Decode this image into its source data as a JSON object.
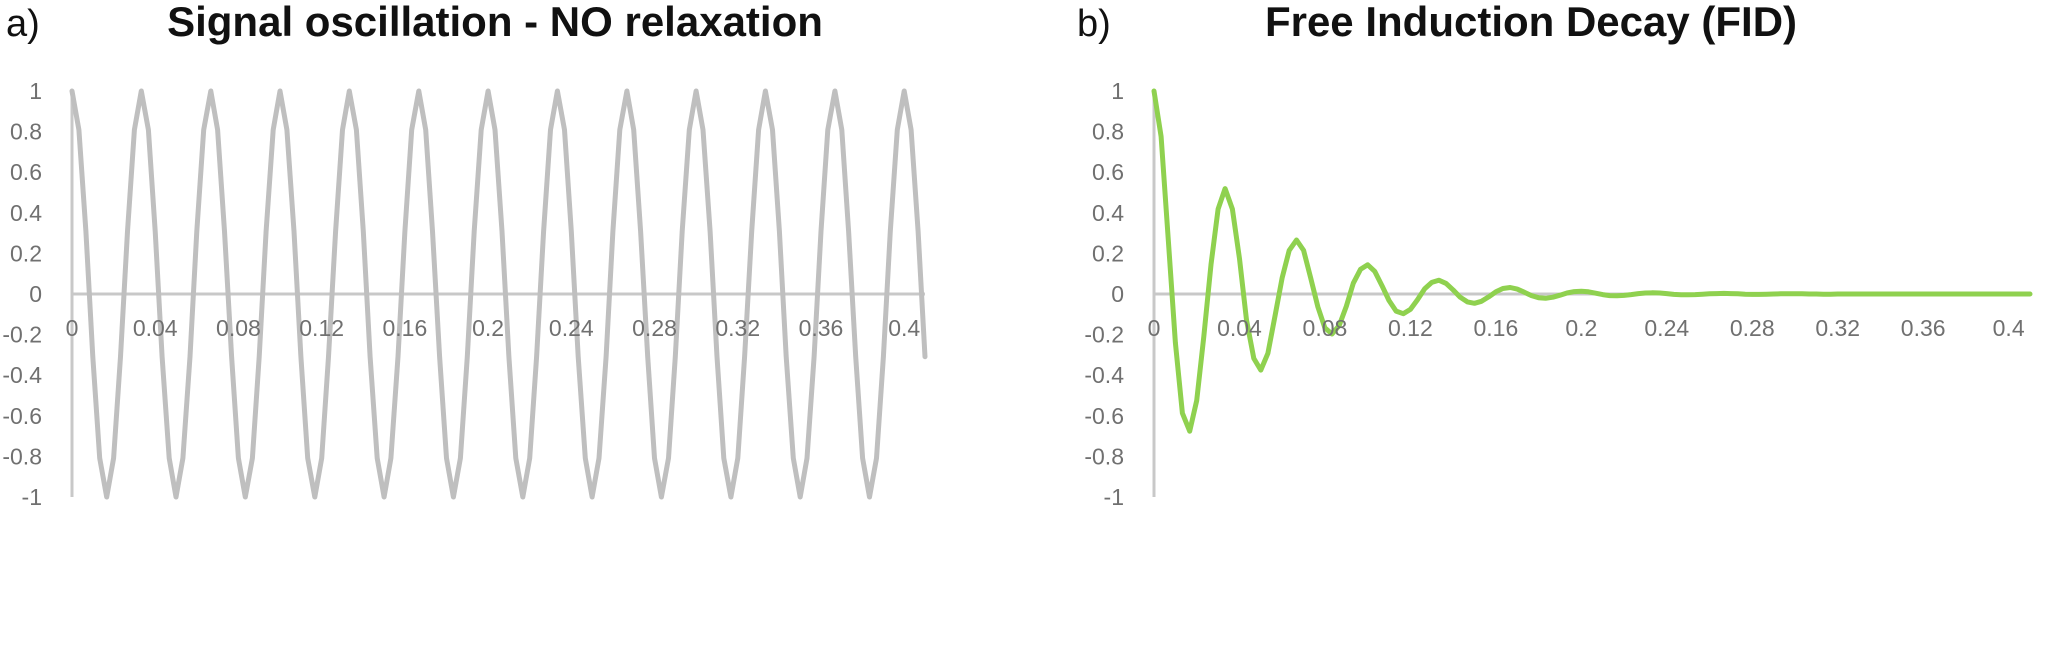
{
  "chart_data": [
    {
      "panel_letter": "a)",
      "title": "Signal oscillation - NO relaxation",
      "type": "line",
      "xlabel": "",
      "ylabel": "",
      "xlim": [
        0,
        0.41
      ],
      "ylim": [
        -1,
        1
      ],
      "x_ticks": [
        "0",
        "0.04",
        "0.08",
        "0.12",
        "0.16",
        "0.2",
        "0.24",
        "0.28",
        "0.32",
        "0.36",
        "0.4"
      ],
      "y_ticks": [
        "1",
        "0.8",
        "0.6",
        "0.4",
        "0.2",
        "0",
        "-0.2",
        "-0.4",
        "-0.6",
        "-0.8",
        "-1"
      ],
      "grid": false,
      "line_color": "#bfbfbf",
      "series": [
        {
          "x": [
            0,
            0.0033,
            0.0067,
            0.01,
            0.0133,
            0.0167,
            0.02,
            0.0233,
            0.0267,
            0.03,
            0.0333,
            0.0367,
            0.04,
            0.0433,
            0.0467,
            0.05,
            0.0533,
            0.0567,
            0.06,
            0.0633,
            0.0667,
            0.07,
            0.0733,
            0.0767,
            0.08,
            0.0833,
            0.0867,
            0.09,
            0.0933,
            0.0967,
            0.1,
            0.1033,
            0.1067,
            0.11,
            0.1133,
            0.1167,
            0.12,
            0.1233,
            0.1267,
            0.13,
            0.1333,
            0.1367,
            0.14,
            0.1433,
            0.1467,
            0.15,
            0.1533,
            0.1567,
            0.16,
            0.1633,
            0.1667,
            0.17,
            0.1733,
            0.1767,
            0.18,
            0.1833,
            0.1867,
            0.19,
            0.1933,
            0.1967,
            0.2,
            0.2033,
            0.2067,
            0.21,
            0.2133,
            0.2167,
            0.22,
            0.2233,
            0.2267,
            0.23,
            0.2333,
            0.2367,
            0.24,
            0.2433,
            0.2467,
            0.25,
            0.2533,
            0.2567,
            0.26,
            0.2633,
            0.2667,
            0.27,
            0.2733,
            0.2767,
            0.28,
            0.2833,
            0.2867,
            0.29,
            0.2933,
            0.2967,
            0.3,
            0.3033,
            0.3067,
            0.31,
            0.3133,
            0.3167,
            0.32,
            0.3233,
            0.3267,
            0.33,
            0.3333,
            0.3367,
            0.34,
            0.3433,
            0.3467,
            0.35,
            0.3533,
            0.3567,
            0.36,
            0.3633,
            0.3667,
            0.37,
            0.3733,
            0.3767,
            0.38,
            0.3833,
            0.3867,
            0.39,
            0.3933,
            0.3967,
            0.4,
            0.4033,
            0.4067,
            0.41
          ],
          "y": [
            1,
            0.809,
            0.309,
            -0.309,
            -0.809,
            -1,
            -0.809,
            -0.309,
            0.309,
            0.809,
            1,
            0.809,
            0.309,
            -0.309,
            -0.809,
            -1,
            -0.809,
            -0.309,
            0.309,
            0.809,
            1,
            0.809,
            0.309,
            -0.309,
            -0.809,
            -1,
            -0.809,
            -0.309,
            0.309,
            0.809,
            1,
            0.809,
            0.309,
            -0.309,
            -0.809,
            -1,
            -0.809,
            -0.309,
            0.309,
            0.809,
            1,
            0.809,
            0.309,
            -0.309,
            -0.809,
            -1,
            -0.809,
            -0.309,
            0.309,
            0.809,
            1,
            0.809,
            0.309,
            -0.309,
            -0.809,
            -1,
            -0.809,
            -0.309,
            0.309,
            0.809,
            1,
            0.809,
            0.309,
            -0.309,
            -0.809,
            -1,
            -0.809,
            -0.309,
            0.309,
            0.809,
            1,
            0.809,
            0.309,
            -0.309,
            -0.809,
            -1,
            -0.809,
            -0.309,
            0.309,
            0.809,
            1,
            0.809,
            0.309,
            -0.309,
            -0.809,
            -1,
            -0.809,
            -0.309,
            0.309,
            0.809,
            1,
            0.809,
            0.309,
            -0.309,
            -0.809,
            -1,
            -0.809,
            -0.309,
            0.309,
            0.809,
            1,
            0.809,
            0.309,
            -0.309,
            -0.809,
            -1,
            -0.809,
            -0.309,
            0.309,
            0.809,
            1,
            0.809,
            0.309,
            -0.309,
            -0.809,
            -1,
            -0.809,
            -0.309,
            0.309,
            0.809,
            1,
            0.809,
            0.309,
            -0.309
          ]
        }
      ]
    },
    {
      "panel_letter": "b)",
      "title": "Free Induction Decay (FID)",
      "type": "line",
      "xlabel": "",
      "ylabel": "",
      "xlim": [
        0,
        0.41
      ],
      "ylim": [
        -1,
        1
      ],
      "x_ticks": [
        "0",
        "0.04",
        "0.08",
        "0.12",
        "0.16",
        "0.2",
        "0.24",
        "0.28",
        "0.32",
        "0.36",
        "0.4"
      ],
      "y_ticks": [
        "1",
        "0.8",
        "0.6",
        "0.4",
        "0.2",
        "0",
        "-0.2",
        "-0.4",
        "-0.6",
        "-0.8",
        "-1"
      ],
      "grid": false,
      "line_color": "#8fd14f",
      "series": [
        {
          "x": [
            0,
            0.0033,
            0.0067,
            0.01,
            0.0133,
            0.0167,
            0.02,
            0.0233,
            0.0267,
            0.03,
            0.0333,
            0.0367,
            0.04,
            0.0433,
            0.0467,
            0.05,
            0.0533,
            0.0567,
            0.06,
            0.0633,
            0.0667,
            0.07,
            0.0733,
            0.0767,
            0.08,
            0.0833,
            0.0867,
            0.09,
            0.0933,
            0.0967,
            0.1,
            0.1033,
            0.1067,
            0.11,
            0.1133,
            0.1167,
            0.12,
            0.1233,
            0.1267,
            0.13,
            0.1333,
            0.1367,
            0.14,
            0.1433,
            0.1467,
            0.15,
            0.1533,
            0.1567,
            0.16,
            0.1633,
            0.1667,
            0.17,
            0.1733,
            0.1767,
            0.18,
            0.1833,
            0.1867,
            0.19,
            0.1933,
            0.1967,
            0.2,
            0.2033,
            0.2067,
            0.21,
            0.2133,
            0.2167,
            0.22,
            0.2233,
            0.2267,
            0.23,
            0.2333,
            0.2367,
            0.24,
            0.2433,
            0.2467,
            0.25,
            0.2533,
            0.2567,
            0.26,
            0.2633,
            0.2667,
            0.27,
            0.2733,
            0.2767,
            0.28,
            0.2833,
            0.2867,
            0.29,
            0.2933,
            0.2967,
            0.3,
            0.3033,
            0.3067,
            0.31,
            0.3133,
            0.3167,
            0.32,
            0.3233,
            0.3267,
            0.33,
            0.3333,
            0.3367,
            0.34,
            0.3433,
            0.3467,
            0.35,
            0.3533,
            0.3567,
            0.36,
            0.3633,
            0.3667,
            0.37,
            0.3733,
            0.3767,
            0.38,
            0.3833,
            0.3867,
            0.39,
            0.3933,
            0.3967,
            0.4,
            0.4033,
            0.4067,
            0.41
          ],
          "y": [
            1,
            0.776,
            0.266,
            -0.241,
            -0.587,
            -0.676,
            -0.525,
            -0.21,
            0.145,
            0.418,
            0.519,
            0.418,
            0.174,
            -0.128,
            -0.317,
            -0.375,
            -0.292,
            -0.106,
            0.081,
            0.215,
            0.266,
            0.215,
            0.081,
            -0.064,
            -0.167,
            -0.197,
            -0.155,
            -0.061,
            0.053,
            0.122,
            0.144,
            0.112,
            0.041,
            -0.032,
            -0.084,
            -0.097,
            -0.076,
            -0.029,
            0.026,
            0.057,
            0.068,
            0.052,
            0.02,
            -0.016,
            -0.039,
            -0.046,
            -0.036,
            -0.014,
            0.011,
            0.027,
            0.032,
            0.024,
            0.009,
            -0.008,
            -0.018,
            -0.021,
            -0.016,
            -0.006,
            0.005,
            0.012,
            0.014,
            0.011,
            0.004,
            -0.003,
            -0.008,
            -0.009,
            -0.007,
            -0.003,
            0.002,
            0.005,
            0.006,
            0.005,
            0.002,
            -0.002,
            -0.004,
            -0.004,
            -0.003,
            -0.001,
            0.001,
            0.002,
            0.003,
            0.002,
            0.001,
            -0.001,
            -0.002,
            -0.002,
            -0.001,
            0,
            0.001,
            0.001,
            0.001,
            0.001,
            0,
            0,
            -0.001,
            -0.001,
            0,
            0,
            0,
            0,
            0,
            0,
            0,
            0,
            0,
            0,
            0,
            0,
            0,
            0,
            0,
            0,
            0,
            0,
            0,
            0,
            0,
            0,
            0,
            0,
            0,
            0,
            0,
            0
          ]
        }
      ]
    }
  ]
}
